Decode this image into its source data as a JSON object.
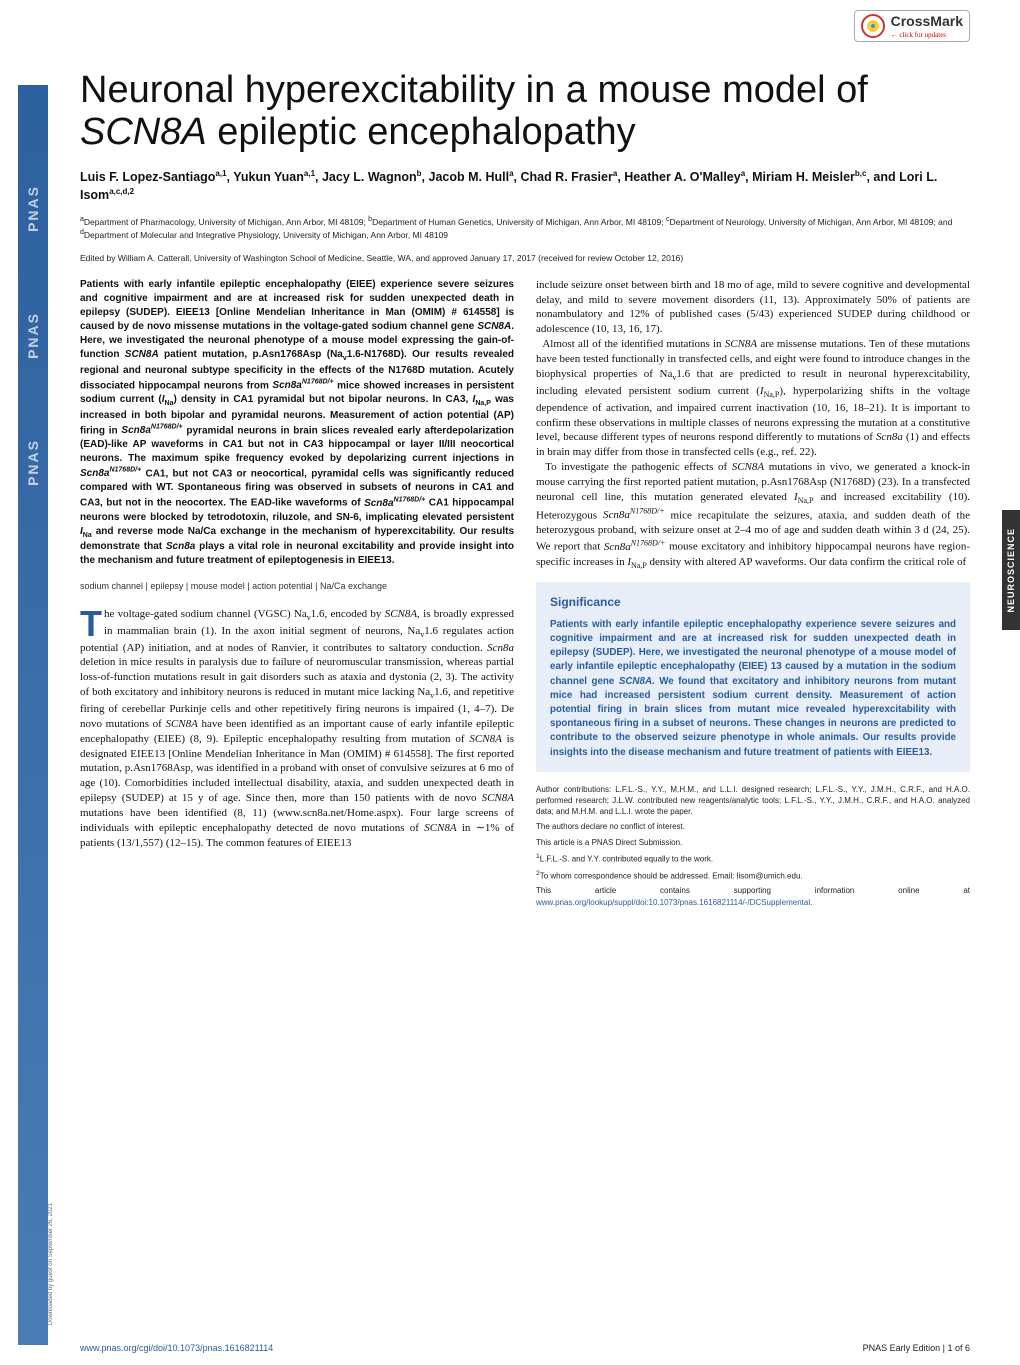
{
  "crossmark": {
    "brand": "CrossMark",
    "tagline": "← click for updates"
  },
  "sidebar": {
    "label": "PNAS"
  },
  "vtab": {
    "label": "NEUROSCIENCE"
  },
  "download_note": "Downloaded by guest on September 26, 2021",
  "title_html": "Neuronal hyperexcitability in a mouse model of <em>SCN8A</em> epileptic encephalopathy",
  "authors_html": "Luis F. Lopez-Santiago<sup>a,1</sup>, Yukun Yuan<sup>a,1</sup>, Jacy L. Wagnon<sup>b</sup>, Jacob M. Hull<sup>a</sup>, Chad R. Frasier<sup>a</sup>, Heather A. O'Malley<sup>a</sup>, Miriam H. Meisler<sup>b,c</sup>, and Lori L. Isom<sup>a,c,d,2</sup>",
  "affiliations_html": "<sup>a</sup>Department of Pharmacology, University of Michigan, Ann Arbor, MI 48109; <sup>b</sup>Department of Human Genetics, University of Michigan, Ann Arbor, MI 48109; <sup>c</sup>Department of Neurology, University of Michigan, Ann Arbor, MI 48109; and <sup>d</sup>Department of Molecular and Integrative Physiology, University of Michigan, Ann Arbor, MI 48109",
  "edited_by": "Edited by William A. Catterall, University of Washington School of Medicine, Seattle, WA, and approved January 17, 2017 (received for review October 12, 2016)",
  "abstract_html": "Patients with early infantile epileptic encephalopathy (EIEE) experience severe seizures and cognitive impairment and are at increased risk for sudden unexpected death in epilepsy (SUDEP). EIEE13 [Online Mendelian Inheritance in Man (OMIM) # 614558] is caused by de novo missense mutations in the voltage-gated sodium channel gene <em>SCN8A</em>. Here, we investigated the neuronal phenotype of a mouse model expressing the gain-of-function <em>SCN8A</em> patient mutation, p.Asn1768Asp (Na<sub>v</sub>1.6-N1768D). Our results revealed regional and neuronal subtype specificity in the effects of the N1768D mutation. Acutely dissociated hippocampal neurons from <em>Scn8a<sup>N1768D/+</sup></em> mice showed increases in persistent sodium current (<em>I</em><sub>Na</sub>) density in CA1 pyramidal but not bipolar neurons. In CA3, <em>I</em><sub>Na,P</sub> was increased in both bipolar and pyramidal neurons. Measurement of action potential (AP) firing in <em>Scn8a<sup>N1768D/+</sup></em> pyramidal neurons in brain slices revealed early afterdepolarization (EAD)-like AP waveforms in CA1 but not in CA3 hippocampal or layer II/III neocortical neurons. The maximum spike frequency evoked by depolarizing current injections in <em>Scn8a<sup>N1768D/+</sup></em> CA1, but not CA3 or neocortical, pyramidal cells was significantly reduced compared with WT. Spontaneous firing was observed in subsets of neurons in CA1 and CA3, but not in the neocortex. The EAD-like waveforms of <em>Scn8a<sup>N1768D/+</sup></em> CA1 hippocampal neurons were blocked by tetrodotoxin, riluzole, and SN-6, implicating elevated persistent <em>I</em><sub>Na</sub> and reverse mode Na/Ca exchange in the mechanism of hyperexcitability. Our results demonstrate that <em>Scn8a</em> plays a vital role in neuronal excitability and provide insight into the mechanism and future treatment of epileptogenesis in EIEE13.",
  "keywords": "sodium channel | epilepsy | mouse model | action potential | Na/Ca exchange",
  "body_col1_html": "he voltage-gated sodium channel (VGSC) Na<sub>v</sub>1.6, encoded by <em>SCN8A</em>, is broadly expressed in mammalian brain (1). In the axon initial segment of neurons, Na<sub>v</sub>1.6 regulates action potential (AP) initiation, and at nodes of Ranvier, it contributes to saltatory conduction. <em>Scn8a</em> deletion in mice results in paralysis due to failure of neuromuscular transmission, whereas partial loss-of-function mutations result in gait disorders such as ataxia and dystonia (2, 3). The activity of both excitatory and inhibitory neurons is reduced in mutant mice lacking Na<sub>v</sub>1.6, and repetitive firing of cerebellar Purkinje cells and other repetitively firing neurons is impaired (1, 4–7). De novo mutations of <em>SCN8A</em> have been identified as an important cause of early infantile epileptic encephalopathy (EIEE) (8, 9). Epileptic encephalopathy resulting from mutation of <em>SCN8A</em> is designated EIEE13 [Online Mendelian Inheritance in Man (OMIM) # 614558]. The first reported mutation, p.Asn1768Asp, was identified in a proband with onset of convulsive seizures at 6 mo of age (10). Comorbidities included intellectual disability, ataxia, and sudden unexpected death in epilepsy (SUDEP) at 15 y of age. Since then, more than 150 patients with de novo <em>SCN8A</em> mutations have been identified (8, 11) (<a>www.scn8a.net/Home.aspx</a>). Four large screens of individuals with epileptic encephalopathy detected de novo mutations of <em>SCN8A</em> in ∼1% of patients (13/1,557) (12–15). The common features of EIEE13",
  "body_col2_top_html": "include seizure onset between birth and 18 mo of age, mild to severe cognitive and developmental delay, and mild to severe movement disorders (11, 13). Approximately 50% of patients are nonambulatory and 12% of published cases (5/43) experienced SUDEP during childhood or adolescence (10, 13, 16, 17).<br>&nbsp;&nbsp;Almost all of the identified mutations in <em>SCN8A</em> are missense mutations. Ten of these mutations have been tested functionally in transfected cells, and eight were found to introduce changes in the biophysical properties of Na<sub>v</sub>1.6 that are predicted to result in neuronal hyperexcitability, including elevated persistent sodium current (<em>I</em><sub>Na,P</sub>), hyperpolarizing shifts in the voltage dependence of activation, and impaired current inactivation (10, 16, 18–21). It is important to confirm these observations in multiple classes of neurons expressing the mutation at a constitutive level, because different types of neurons respond differently to mutations of <em>Scn8a</em> (1) and effects in brain may differ from those in transfected cells (e.g., ref. 22).<br>&nbsp;&nbsp;To investigate the pathogenic effects of <em>SCN8A</em> mutations in vivo, we generated a knock-in mouse carrying the first reported patient mutation, p.Asn1768Asp (N1768D) (23). In a transfected neuronal cell line, this mutation generated elevated <em>I</em><sub>Na,P</sub> and increased excitability (10). Heterozygous <em>Scn8a<sup>N1768D/+</sup></em> mice recapitulate the seizures, ataxia, and sudden death of the heterozygous proband, with seizure onset at 2–4 mo of age and sudden death within 3 d (24, 25). We report that <em>Scn8a<sup>N1768D/+</sup></em> mouse excitatory and inhibitory hippocampal neurons have region-specific increases in <em>I</em><sub>Na,P</sub> density with altered AP waveforms. Our data confirm the critical role of",
  "significance": {
    "title": "Significance",
    "text_html": "Patients with early infantile epileptic encephalopathy experience severe seizures and cognitive impairment and are at increased risk for sudden unexpected death in epilepsy (SUDEP). Here, we investigated the neuronal phenotype of a mouse model of early infantile epileptic encephalopathy (EIEE) 13 caused by a mutation in the sodium channel gene <em>SCN8A</em>. We found that excitatory and inhibitory neurons from mutant mice had increased persistent sodium current density. Measurement of action potential firing in brain slices from mutant mice revealed hyperexcitability with spontaneous firing in a subset of neurons. These changes in neurons are predicted to contribute to the observed seizure phenotype in whole animals. Our results provide insights into the disease mechanism and future treatment of patients with EIEE13."
  },
  "footnotes": {
    "contrib": "Author contributions: L.F.L.-S., Y.Y., M.H.M., and L.L.I. designed research; L.F.L.-S., Y.Y., J.M.H., C.R.F., and H.A.O. performed research; J.L.W. contributed new reagents/analytic tools; L.F.L.-S., Y.Y., J.M.H., C.R.F., and H.A.O. analyzed data; and M.H.M. and L.L.I. wrote the paper.",
    "conflict": "The authors declare no conflict of interest.",
    "direct": "This article is a PNAS Direct Submission.",
    "equal": "L.F.L.-S. and Y.Y. contributed equally to the work.",
    "corresp": "To whom correspondence should be addressed. Email: lisom@umich.edu.",
    "suppl_html": "This article contains supporting information online at <a>www.pnas.org/lookup/suppl/doi:10.1073/pnas.1616821114/-/DCSupplemental</a>."
  },
  "footer": {
    "doi": "www.pnas.org/cgi/doi/10.1073/pnas.1616821114",
    "page": "PNAS Early Edition | 1 of 6"
  },
  "colors": {
    "accent": "#2a5c9a",
    "sigbg": "#e8eef7",
    "tab": "#333333"
  }
}
